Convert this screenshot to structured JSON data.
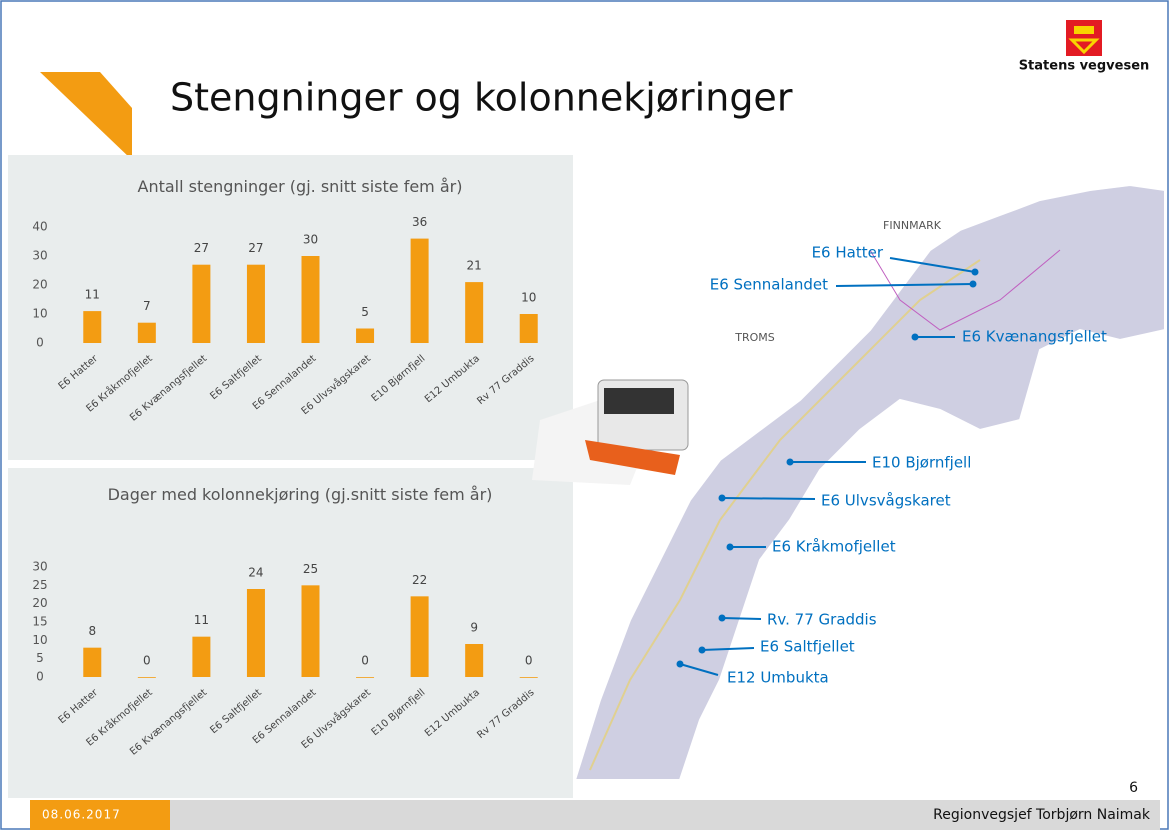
{
  "slide": {
    "title": "Stengninger og kolonnekjøringer",
    "logo_text": "Statens vegvesen",
    "date": "08.06.2017",
    "footer": "Regionvegsjef Torbjørn Naimak",
    "page_number": "6"
  },
  "map": {
    "regions": [
      "FINNMARK",
      "TROMS"
    ],
    "labels": [
      "E6 Hatter",
      "E6 Sennalandet",
      "E6 Kvænangsfjellet",
      "E10 Bjørnfjell",
      "E6 Ulvsvågskaret",
      "E6 Kråkmofjellet",
      "Rv. 77 Graddis",
      "E6 Saltfjellet",
      "E12 Umbukta"
    ]
  },
  "chart_data": [
    {
      "type": "bar",
      "title": "Antall stengninger (gj. snitt siste fem år)",
      "categories": [
        "E6 Hatter",
        "E6 Kråkmofjellet",
        "E6 Kvænangsfjellet",
        "E6 Saltfjellet",
        "E6 Sennalandet",
        "E6 Ulvsvågskaret",
        "E10 Bjørnfjell",
        "E12 Umbukta",
        "Rv 77 Graddis"
      ],
      "values": [
        11,
        7,
        27,
        27,
        30,
        5,
        36,
        21,
        10
      ],
      "color": "#f39c12",
      "ylim": [
        0,
        40
      ],
      "yticks": [
        0,
        10,
        20,
        30,
        40
      ],
      "grid": false
    },
    {
      "type": "bar",
      "title": "Dager med kolonnekjøring (gj.snitt siste fem år)",
      "categories": [
        "E6 Hatter",
        "E6 Kråkmofjellet",
        "E6 Kvænangsfjellet",
        "E6 Saltfjellet",
        "E6 Sennalandet",
        "E6 Ulvsvågskaret",
        "E10 Bjørnfjell",
        "E12 Umbukta",
        "Rv 77 Graddis"
      ],
      "values": [
        8,
        0,
        11,
        24,
        25,
        0,
        22,
        9,
        0
      ],
      "color": "#f39c12",
      "ylim": [
        0,
        30
      ],
      "yticks": [
        0,
        5,
        10,
        15,
        20,
        25,
        30
      ],
      "grid": false
    }
  ]
}
